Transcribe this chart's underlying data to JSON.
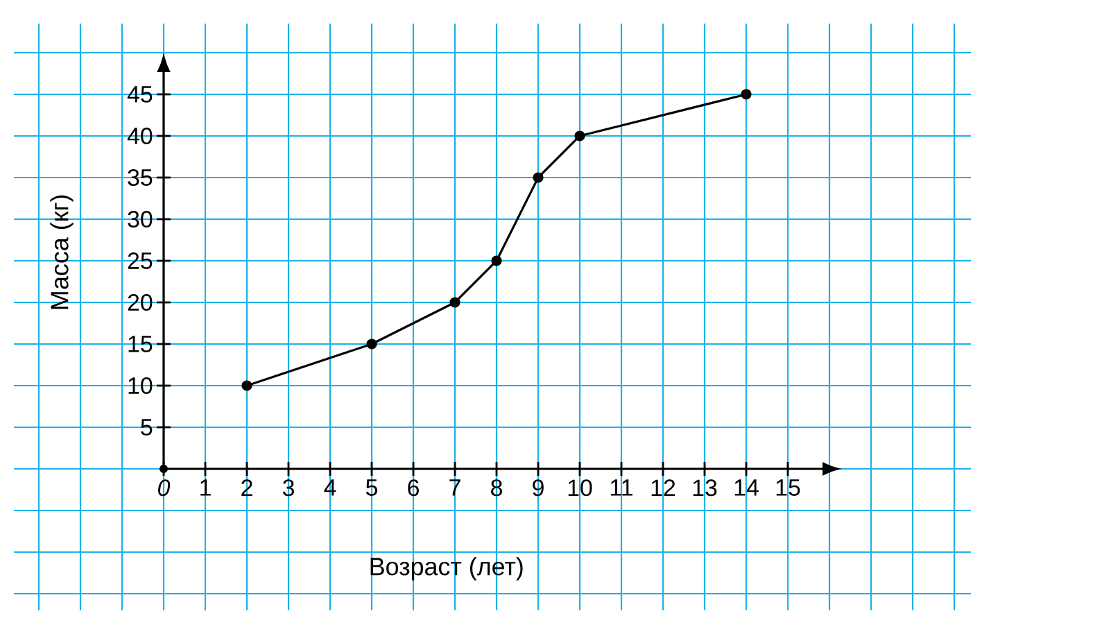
{
  "chart_data": {
    "type": "line",
    "xlabel": "Возраст  (лет)",
    "ylabel": "Масса  (кг)",
    "x": [
      2,
      5,
      7,
      8,
      9,
      10,
      14
    ],
    "series": [
      {
        "color": "#000000",
        "values": [
          10,
          15,
          20,
          25,
          35,
          40,
          45
        ]
      }
    ],
    "xlim": [
      -3.6,
      19.4
    ],
    "ylim": [
      -17,
      53.5
    ],
    "xticks": [
      {
        "value": -3,
        "label": null
      },
      {
        "value": -2,
        "label": null
      },
      {
        "value": -1,
        "label": null
      },
      0,
      1,
      2,
      3,
      4,
      5,
      6,
      7,
      8,
      9,
      10,
      11,
      12,
      13,
      14,
      15,
      {
        "value": 16,
        "label": null
      },
      {
        "value": 17,
        "label": null
      },
      {
        "value": 18,
        "label": null
      },
      {
        "value": 19,
        "label": null
      }
    ],
    "yticks": [
      {
        "value": -15,
        "label": null
      },
      {
        "value": -10,
        "label": null
      },
      {
        "value": -5,
        "label": null
      },
      {
        "value": 0,
        "label": null
      },
      5,
      10,
      15,
      20,
      25,
      30,
      35,
      40,
      45,
      {
        "value": 50,
        "label": null
      }
    ],
    "grid": true,
    "marker": "circle",
    "line_style": "solid"
  }
}
